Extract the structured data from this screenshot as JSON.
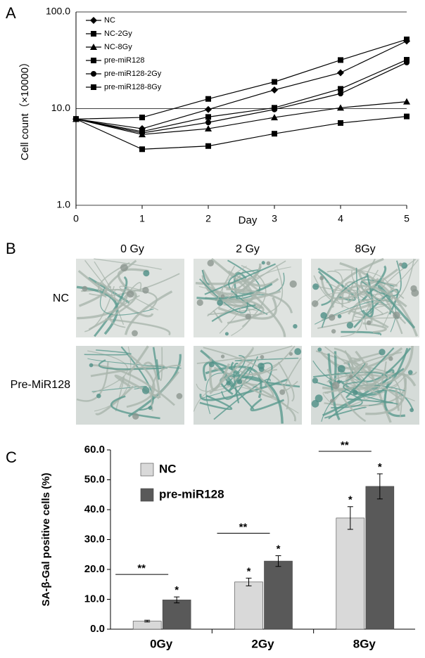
{
  "panels": [
    "A",
    "B",
    "C"
  ],
  "micrographs": {
    "columns": [
      "0 Gy",
      "2 Gy",
      "8Gy"
    ],
    "rows": [
      "NC",
      "Pre-MiR128"
    ]
  },
  "chart_data": [
    {
      "type": "line",
      "xlabel": "Day",
      "ylabel": "Cell count（×10000）",
      "log_y": true,
      "legend": "upper left",
      "grid": true,
      "x": [
        0,
        1,
        2,
        3,
        4,
        5
      ],
      "xlim": [
        0,
        5
      ],
      "xticks": [
        0,
        1,
        2,
        3,
        4,
        5
      ],
      "ylim": [
        1,
        100
      ],
      "yticks": [
        {
          "value": 1,
          "label": "1.0"
        },
        {
          "value": 10,
          "label": "10.0"
        },
        {
          "value": 100,
          "label": "100.0"
        }
      ],
      "series": [
        {
          "name": "NC",
          "color": "#000000",
          "marker": "diamond",
          "values": [
            7.8,
            6.2,
            9.8,
            15.6,
            23.5,
            50
          ]
        },
        {
          "name": "NC-2Gy",
          "color": "#000000",
          "marker": "square",
          "values": [
            7.8,
            5.8,
            8.2,
            10.2,
            16.0,
            32
          ]
        },
        {
          "name": "NC-8Gy",
          "color": "#000000",
          "marker": "triangle",
          "values": [
            7.8,
            5.4,
            6.2,
            8.1,
            10.2,
            11.8
          ]
        },
        {
          "name": "pre-miR128",
          "color": "#000000",
          "marker": "square",
          "values": [
            7.8,
            8.1,
            12.6,
            18.9,
            31.8,
            52
          ]
        },
        {
          "name": "pre-miR128-2Gy",
          "color": "#000000",
          "marker": "circle",
          "values": [
            7.8,
            5.6,
            7.2,
            9.8,
            14.3,
            30
          ]
        },
        {
          "name": "pre-miR128-8Gy",
          "color": "#000000",
          "marker": "square",
          "values": [
            7.8,
            3.8,
            4.1,
            5.5,
            7.1,
            8.3
          ]
        }
      ]
    },
    {
      "type": "bar",
      "ylabel": "SA-β-Gal positive cells (%)",
      "legend": "upper left",
      "categories": [
        "0Gy",
        "2Gy",
        "8Gy"
      ],
      "ylim": [
        0,
        60
      ],
      "yticks": [
        {
          "value": 0,
          "label": "0.0"
        },
        {
          "value": 10,
          "label": "10.0"
        },
        {
          "value": 20,
          "label": "20.0"
        },
        {
          "value": 30,
          "label": "30.0"
        },
        {
          "value": 40,
          "label": "40.0"
        },
        {
          "value": 50,
          "label": "50.0"
        },
        {
          "value": 60,
          "label": "60.0"
        }
      ],
      "series": [
        {
          "name": "NC",
          "color": "#d9d9d9",
          "values": [
            2.7,
            15.8,
            37.2
          ],
          "errors": [
            0.3,
            1.3,
            3.8
          ],
          "marks": [
            null,
            "*",
            "*"
          ]
        },
        {
          "name": "pre-miR128",
          "color": "#595959",
          "values": [
            9.8,
            22.8,
            47.8
          ],
          "errors": [
            1.0,
            1.8,
            4.2
          ],
          "marks": [
            "*",
            "*",
            "*"
          ]
        }
      ],
      "brackets": [
        "**",
        "**",
        "**"
      ]
    }
  ]
}
